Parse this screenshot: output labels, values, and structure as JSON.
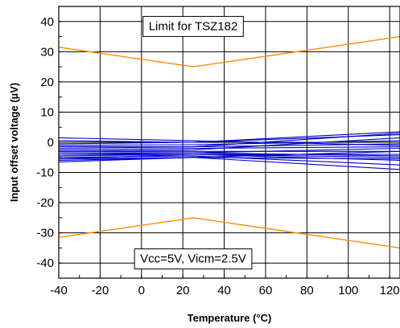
{
  "chart_data": {
    "type": "line",
    "title": "",
    "xlabel": "Temperature (°C)",
    "ylabel": "Input offset voltage (µV)",
    "xlim": [
      -40,
      125
    ],
    "ylim": [
      -45,
      45
    ],
    "xticks": [
      -40,
      -20,
      0,
      20,
      40,
      60,
      80,
      100,
      120
    ],
    "xtick_labels": [
      "-40",
      "-20",
      "0",
      "20",
      "40",
      "60",
      "80",
      "100",
      "120"
    ],
    "yticks": [
      40,
      30,
      20,
      10,
      0,
      -10,
      -20,
      -30,
      -40
    ],
    "ytick_labels": [
      "40",
      "30",
      "20",
      "10",
      "0",
      "-10",
      "-20",
      "-30",
      "-40"
    ],
    "grid": true,
    "x": [
      -40,
      25,
      125
    ],
    "limit_color": "#ff8c00",
    "sample_color": "#0000cc",
    "limit_series": [
      {
        "values": [
          31.5,
          25,
          35
        ]
      },
      {
        "values": [
          -31.5,
          -25,
          -35
        ]
      }
    ],
    "sample_series": [
      {
        "values": [
          1.5,
          0.5,
          -1.0
        ]
      },
      {
        "values": [
          0.5,
          0.0,
          3.5
        ]
      },
      {
        "values": [
          -0.5,
          0.0,
          2.5
        ]
      },
      {
        "values": [
          -1.0,
          -0.8,
          0.5
        ]
      },
      {
        "values": [
          -1.5,
          -1.5,
          -0.5
        ]
      },
      {
        "values": [
          -2.0,
          -1.5,
          3.0
        ]
      },
      {
        "values": [
          -2.5,
          -2.0,
          -1.5
        ]
      },
      {
        "values": [
          -3.0,
          -2.5,
          1.5
        ]
      },
      {
        "values": [
          -3.0,
          -3.0,
          -3.0
        ]
      },
      {
        "values": [
          -3.5,
          -3.5,
          -4.5
        ]
      },
      {
        "values": [
          -4.0,
          -3.5,
          -2.0
        ]
      },
      {
        "values": [
          -4.0,
          -4.0,
          -6.0
        ]
      },
      {
        "values": [
          -4.5,
          -4.0,
          -5.0
        ]
      },
      {
        "values": [
          -5.0,
          -4.5,
          -7.5
        ]
      },
      {
        "values": [
          -5.5,
          -4.0,
          -4.0
        ]
      },
      {
        "values": [
          -5.5,
          -5.0,
          -9.0
        ]
      },
      {
        "values": [
          -6.0,
          -5.0,
          -3.0
        ]
      },
      {
        "values": [
          -6.5,
          -5.0,
          -5.5
        ]
      }
    ],
    "annotations": [
      {
        "text": "Limit for TSZ182",
        "x": 25,
        "y": 38.5
      },
      {
        "text": "Vcc=5V, Vicm=2.5V",
        "x": 25,
        "y": -38.5
      }
    ]
  }
}
